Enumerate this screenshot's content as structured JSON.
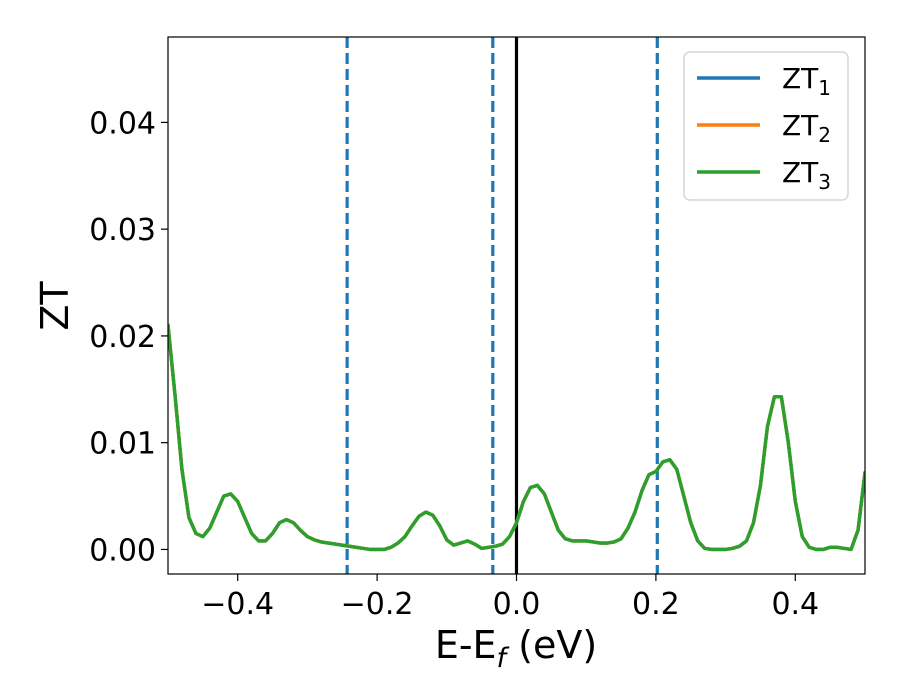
{
  "chart_data": {
    "type": "line",
    "title": "",
    "xlabel_main": "E-E",
    "xlabel_sub": "f",
    "xlabel_tail": " (eV)",
    "ylabel": "ZT",
    "xlim": [
      -0.5,
      0.5
    ],
    "ylim": [
      -0.0023,
      0.048
    ],
    "x_ticks": [
      -0.4,
      -0.2,
      0.0,
      0.2,
      0.4
    ],
    "x_tick_labels": [
      "−0.4",
      "−0.2",
      "0.0",
      "0.2",
      "0.4"
    ],
    "y_ticks": [
      0.0,
      0.01,
      0.02,
      0.03,
      0.04
    ],
    "y_tick_labels": [
      "0.00",
      "0.01",
      "0.02",
      "0.03",
      "0.04"
    ],
    "grid": false,
    "legend_position": "top-right",
    "reference_lines": {
      "solid_vertical": {
        "x": 0.0,
        "color": "#000000"
      },
      "dashed_vertical": {
        "x": [
          -0.243,
          -0.034,
          0.202
        ],
        "color": "#1f77b4"
      }
    },
    "series": [
      {
        "name": "ZT",
        "subscript": "1",
        "color": "#1f77b4",
        "x": [
          -0.5,
          -0.49,
          -0.48,
          -0.47,
          -0.46,
          -0.45,
          -0.44,
          -0.43,
          -0.42,
          -0.41,
          -0.4,
          -0.39,
          -0.38,
          -0.37,
          -0.36,
          -0.35,
          -0.34,
          -0.33,
          -0.32,
          -0.31,
          -0.3,
          -0.29,
          -0.28,
          -0.27,
          -0.26,
          -0.25,
          -0.24,
          -0.23,
          -0.22,
          -0.21,
          -0.2,
          -0.19,
          -0.18,
          -0.17,
          -0.16,
          -0.15,
          -0.14,
          -0.13,
          -0.12,
          -0.11,
          -0.1,
          -0.09,
          -0.08,
          -0.07,
          -0.06,
          -0.05,
          -0.04,
          -0.03,
          -0.02,
          -0.01,
          0.0,
          0.01,
          0.02,
          0.03,
          0.04,
          0.05,
          0.06,
          0.07,
          0.08,
          0.09,
          0.1,
          0.11,
          0.12,
          0.13,
          0.14,
          0.15,
          0.16,
          0.17,
          0.18,
          0.19,
          0.2,
          0.21,
          0.22,
          0.23,
          0.24,
          0.25,
          0.26,
          0.27,
          0.28,
          0.29,
          0.3,
          0.31,
          0.32,
          0.33,
          0.34,
          0.35,
          0.36,
          0.37,
          0.38,
          0.39,
          0.4,
          0.41,
          0.42,
          0.43,
          0.44,
          0.45,
          0.46,
          0.47,
          0.48,
          0.49,
          0.5
        ],
        "y": [
          0.021,
          0.0145,
          0.0075,
          0.003,
          0.0015,
          0.0012,
          0.002,
          0.0035,
          0.005,
          0.0052,
          0.0045,
          0.003,
          0.0015,
          0.0008,
          0.0008,
          0.0015,
          0.0025,
          0.0028,
          0.0025,
          0.0018,
          0.0012,
          0.0009,
          0.0007,
          0.0006,
          0.0005,
          0.0004,
          0.0003,
          0.0002,
          0.0001,
          0.0,
          0.0,
          0.0,
          0.0002,
          0.0006,
          0.0012,
          0.0022,
          0.0031,
          0.0035,
          0.0032,
          0.0022,
          0.0009,
          0.0004,
          0.0006,
          0.0008,
          0.0005,
          0.0001,
          0.0002,
          0.0003,
          0.0005,
          0.0012,
          0.0025,
          0.0045,
          0.0058,
          0.006,
          0.0052,
          0.0035,
          0.0018,
          0.001,
          0.0008,
          0.0008,
          0.0008,
          0.0007,
          0.0006,
          0.0006,
          0.0007,
          0.001,
          0.002,
          0.0035,
          0.0055,
          0.007,
          0.0073,
          0.0082,
          0.0084,
          0.0075,
          0.005,
          0.0025,
          0.0008,
          0.0001,
          0.0,
          0.0,
          0.0,
          0.0001,
          0.0003,
          0.0008,
          0.0025,
          0.006,
          0.0115,
          0.0143,
          0.0143,
          0.01,
          0.0045,
          0.0012,
          0.0002,
          0.0,
          0.0,
          0.0002,
          0.0002,
          0.0001,
          0.0,
          0.0018,
          0.0072
        ]
      },
      {
        "name": "ZT",
        "subscript": "2",
        "color": "#ff7f0e",
        "x": [
          -0.5,
          -0.49,
          -0.48,
          -0.47,
          -0.46,
          -0.45,
          -0.44,
          -0.43,
          -0.42,
          -0.41,
          -0.4,
          -0.39,
          -0.38,
          -0.37,
          -0.36,
          -0.35,
          -0.34,
          -0.33,
          -0.32,
          -0.31,
          -0.3,
          -0.29,
          -0.28,
          -0.27,
          -0.26,
          -0.25,
          -0.24,
          -0.23,
          -0.22,
          -0.21,
          -0.2,
          -0.19,
          -0.18,
          -0.17,
          -0.16,
          -0.15,
          -0.14,
          -0.13,
          -0.12,
          -0.11,
          -0.1,
          -0.09,
          -0.08,
          -0.07,
          -0.06,
          -0.05,
          -0.04,
          -0.03,
          -0.02,
          -0.01,
          0.0,
          0.01,
          0.02,
          0.03,
          0.04,
          0.05,
          0.06,
          0.07,
          0.08,
          0.09,
          0.1,
          0.11,
          0.12,
          0.13,
          0.14,
          0.15,
          0.16,
          0.17,
          0.18,
          0.19,
          0.2,
          0.21,
          0.22,
          0.23,
          0.24,
          0.25,
          0.26,
          0.27,
          0.28,
          0.29,
          0.3,
          0.31,
          0.32,
          0.33,
          0.34,
          0.35,
          0.36,
          0.37,
          0.38,
          0.39,
          0.4,
          0.41,
          0.42,
          0.43,
          0.44,
          0.45,
          0.46,
          0.47,
          0.48,
          0.49,
          0.5
        ],
        "y": [
          0.021,
          0.0145,
          0.0075,
          0.003,
          0.0015,
          0.0012,
          0.002,
          0.0035,
          0.005,
          0.0052,
          0.0045,
          0.003,
          0.0015,
          0.0008,
          0.0008,
          0.0015,
          0.0025,
          0.0028,
          0.0025,
          0.0018,
          0.0012,
          0.0009,
          0.0007,
          0.0006,
          0.0005,
          0.0004,
          0.0003,
          0.0002,
          0.0001,
          0.0,
          0.0,
          0.0,
          0.0002,
          0.0006,
          0.0012,
          0.0022,
          0.0031,
          0.0035,
          0.0032,
          0.0022,
          0.0009,
          0.0004,
          0.0006,
          0.0008,
          0.0005,
          0.0001,
          0.0002,
          0.0003,
          0.0005,
          0.0012,
          0.0025,
          0.0045,
          0.0058,
          0.006,
          0.0052,
          0.0035,
          0.0018,
          0.001,
          0.0008,
          0.0008,
          0.0008,
          0.0007,
          0.0006,
          0.0006,
          0.0007,
          0.001,
          0.002,
          0.0035,
          0.0055,
          0.007,
          0.0073,
          0.0082,
          0.0084,
          0.0075,
          0.005,
          0.0025,
          0.0008,
          0.0001,
          0.0,
          0.0,
          0.0,
          0.0001,
          0.0003,
          0.0008,
          0.0025,
          0.006,
          0.0115,
          0.0143,
          0.0143,
          0.01,
          0.0045,
          0.0012,
          0.0002,
          0.0,
          0.0,
          0.0002,
          0.0002,
          0.0001,
          0.0,
          0.0018,
          0.0072
        ]
      },
      {
        "name": "ZT",
        "subscript": "3",
        "color": "#2ca02c",
        "x": [
          -0.5,
          -0.49,
          -0.48,
          -0.47,
          -0.46,
          -0.45,
          -0.44,
          -0.43,
          -0.42,
          -0.41,
          -0.4,
          -0.39,
          -0.38,
          -0.37,
          -0.36,
          -0.35,
          -0.34,
          -0.33,
          -0.32,
          -0.31,
          -0.3,
          -0.29,
          -0.28,
          -0.27,
          -0.26,
          -0.25,
          -0.24,
          -0.23,
          -0.22,
          -0.21,
          -0.2,
          -0.19,
          -0.18,
          -0.17,
          -0.16,
          -0.15,
          -0.14,
          -0.13,
          -0.12,
          -0.11,
          -0.1,
          -0.09,
          -0.08,
          -0.07,
          -0.06,
          -0.05,
          -0.04,
          -0.03,
          -0.02,
          -0.01,
          0.0,
          0.01,
          0.02,
          0.03,
          0.04,
          0.05,
          0.06,
          0.07,
          0.08,
          0.09,
          0.1,
          0.11,
          0.12,
          0.13,
          0.14,
          0.15,
          0.16,
          0.17,
          0.18,
          0.19,
          0.2,
          0.21,
          0.22,
          0.23,
          0.24,
          0.25,
          0.26,
          0.27,
          0.28,
          0.29,
          0.3,
          0.31,
          0.32,
          0.33,
          0.34,
          0.35,
          0.36,
          0.37,
          0.38,
          0.39,
          0.4,
          0.41,
          0.42,
          0.43,
          0.44,
          0.45,
          0.46,
          0.47,
          0.48,
          0.49,
          0.5
        ],
        "y": [
          0.021,
          0.0145,
          0.0075,
          0.003,
          0.0015,
          0.0012,
          0.002,
          0.0035,
          0.005,
          0.0052,
          0.0045,
          0.003,
          0.0015,
          0.0008,
          0.0008,
          0.0015,
          0.0025,
          0.0028,
          0.0025,
          0.0018,
          0.0012,
          0.0009,
          0.0007,
          0.0006,
          0.0005,
          0.0004,
          0.0003,
          0.0002,
          0.0001,
          0.0,
          0.0,
          0.0,
          0.0002,
          0.0006,
          0.0012,
          0.0022,
          0.0031,
          0.0035,
          0.0032,
          0.0022,
          0.0009,
          0.0004,
          0.0006,
          0.0008,
          0.0005,
          0.0001,
          0.0002,
          0.0003,
          0.0005,
          0.0012,
          0.0025,
          0.0045,
          0.0058,
          0.006,
          0.0052,
          0.0035,
          0.0018,
          0.001,
          0.0008,
          0.0008,
          0.0008,
          0.0007,
          0.0006,
          0.0006,
          0.0007,
          0.001,
          0.002,
          0.0035,
          0.0055,
          0.007,
          0.0073,
          0.0082,
          0.0084,
          0.0075,
          0.005,
          0.0025,
          0.0008,
          0.0001,
          0.0,
          0.0,
          0.0,
          0.0001,
          0.0003,
          0.0008,
          0.0025,
          0.006,
          0.0115,
          0.0143,
          0.0143,
          0.01,
          0.0045,
          0.0012,
          0.0002,
          0.0,
          0.0,
          0.0002,
          0.0002,
          0.0001,
          0.0,
          0.0018,
          0.0072
        ]
      }
    ]
  }
}
